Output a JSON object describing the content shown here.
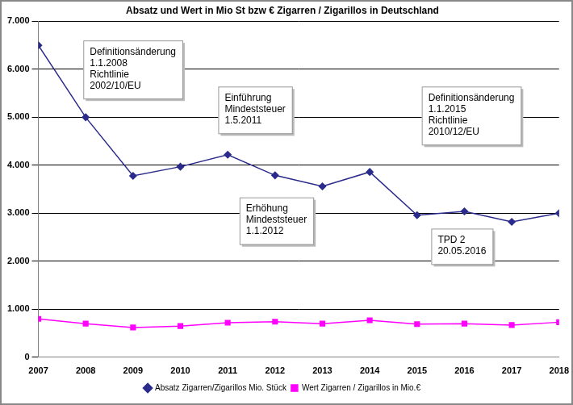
{
  "chart_data": {
    "type": "line",
    "title": "Absatz und Wert in Mio St bzw € Zigarren / Zigarillos in Deutschland",
    "categories": [
      "2007",
      "2008",
      "2009",
      "2010",
      "2011",
      "2012",
      "2013",
      "2014",
      "2015",
      "2016",
      "2017",
      "2018"
    ],
    "series": [
      {
        "name": "Absatz Zigarren/Zigarillos Mio. Stück",
        "color": "#2b2b8c",
        "marker": "diamond",
        "line_style": "solid",
        "values": [
          6500,
          5000,
          3780,
          3970,
          4220,
          3790,
          3560,
          3860,
          2960,
          3040,
          2820,
          3000
        ]
      },
      {
        "name": "Wert Zigarren / Zigarillos in Mio.€",
        "color": "#ff00ff",
        "marker": "square",
        "line_style": "solid",
        "values": [
          800,
          700,
          620,
          650,
          720,
          740,
          700,
          770,
          690,
          700,
          670,
          730
        ]
      }
    ],
    "ylim": [
      0,
      7000
    ],
    "yticks": [
      0,
      {
        "value": 1000,
        "label": "1.000"
      },
      {
        "value": 2000,
        "label": "2.000"
      },
      {
        "value": 3000,
        "label": "3.000"
      },
      {
        "value": 4000,
        "label": "4.000"
      },
      {
        "value": 5000,
        "label": "5.000"
      },
      {
        "value": 6000,
        "label": "6.000"
      },
      {
        "value": 7000,
        "label": "7.000"
      }
    ],
    "grid": true,
    "legend": "bottom",
    "annotations": [
      [
        "Definitionsänderung",
        "1.1.2008",
        "Richtlinie",
        "2002/10/EU"
      ],
      [
        "Einführung",
        "Mindeststeuer",
        "1.5.2011"
      ],
      [
        "Erhöhung",
        "Mindeststeuer",
        "1.1.2012"
      ],
      [
        "Definitionsänderung",
        "1.1.2015",
        "Richtlinie",
        "2010/12/EU"
      ],
      [
        "TPD 2",
        "20.05.2016"
      ]
    ]
  }
}
